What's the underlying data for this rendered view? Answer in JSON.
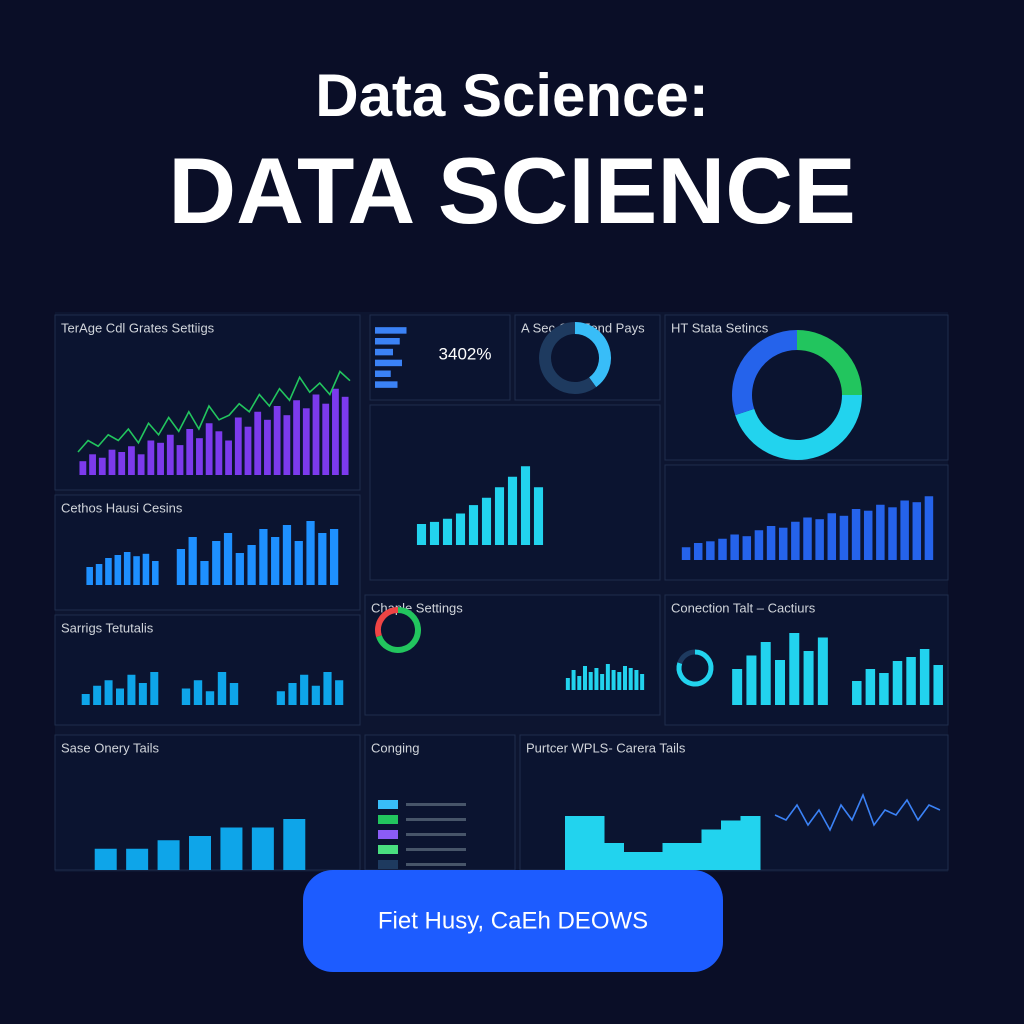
{
  "header": {
    "title": "Data Science:",
    "subtitle": "DATA SCIENCE"
  },
  "panels": [
    {
      "title": "TerAge Cdl Grates Settiigs",
      "charts": [
        {
          "type": "bar",
          "color": "#7c3aed",
          "ylim": [
            0,
            100
          ],
          "values": [
            12,
            18,
            15,
            22,
            20,
            25,
            18,
            30,
            28,
            35,
            26,
            40,
            32,
            45,
            38,
            30,
            50,
            42,
            55,
            48,
            60,
            52,
            65,
            58,
            70,
            62,
            75,
            68
          ]
        },
        {
          "type": "line",
          "color": "#22c55e",
          "ylim": [
            0,
            100
          ],
          "values": [
            20,
            30,
            25,
            35,
            30,
            40,
            28,
            45,
            35,
            50,
            38,
            55,
            40,
            60,
            48,
            52,
            62,
            55,
            70,
            60,
            75,
            65,
            85,
            72,
            80,
            70,
            90,
            82
          ]
        }
      ]
    },
    {
      "kpi": "3402%",
      "charts": [
        {
          "type": "hbar",
          "color": "#3b82f6",
          "ylim": [
            0,
            100
          ],
          "values": [
            70,
            55,
            40,
            60,
            35,
            50
          ]
        }
      ]
    },
    {
      "title": "A Sec CanFend Pays",
      "charts": [
        {
          "type": "donut",
          "colors": [
            "#38bdf8",
            "#1e3a5f"
          ],
          "values": [
            40,
            60
          ]
        }
      ]
    },
    {
      "title": "HT Stata Setincs",
      "charts": [
        {
          "type": "donut",
          "colors": [
            "#22c55e",
            "#22d3ee",
            "#2563eb"
          ],
          "values": [
            25,
            45,
            30
          ]
        }
      ]
    },
    {
      "charts": [
        {
          "type": "bar",
          "color": "#22d3ee",
          "ylim": [
            0,
            100
          ],
          "values": [
            20,
            22,
            25,
            30,
            38,
            45,
            55,
            65,
            75,
            55
          ]
        }
      ]
    },
    {
      "title": "Cethos Hausi Cesins",
      "charts": [
        {
          "type": "bar",
          "color": "#1e90ff",
          "ylim": [
            0,
            100
          ],
          "values": [
            30,
            35,
            45,
            50,
            55,
            48,
            52,
            40
          ]
        },
        {
          "type": "bar",
          "color": "#1e90ff",
          "ylim": [
            0,
            100
          ],
          "values": [
            45,
            60,
            30,
            55,
            65,
            40,
            50,
            70,
            60,
            75,
            55,
            80,
            65,
            70
          ]
        }
      ]
    },
    {
      "charts": [
        {
          "type": "bar",
          "color": "#2563eb",
          "ylim": [
            0,
            100
          ],
          "values": [
            15,
            20,
            22,
            25,
            30,
            28,
            35,
            40,
            38,
            45,
            50,
            48,
            55,
            52,
            60,
            58,
            65,
            62,
            70,
            68,
            75
          ]
        }
      ]
    },
    {
      "title": "Sarrigs Tetutalis",
      "charts": [
        {
          "type": "bar",
          "color": "#0ea5e9",
          "ylim": [
            0,
            100
          ],
          "values": [
            20,
            35,
            45,
            30,
            55,
            40,
            60
          ]
        },
        {
          "type": "bar",
          "color": "#0ea5e9",
          "ylim": [
            0,
            100
          ],
          "values": [
            30,
            45,
            25,
            60,
            40
          ]
        },
        {
          "type": "bar",
          "color": "#0ea5e9",
          "ylim": [
            0,
            100
          ],
          "values": [
            25,
            40,
            55,
            35,
            60,
            45
          ]
        }
      ]
    },
    {
      "title": "Chaple Settings",
      "charts": [
        {
          "type": "donut",
          "colors": [
            "#22c55e",
            "#ef4444"
          ],
          "values": [
            70,
            30
          ]
        },
        {
          "type": "bar",
          "color": "#22d3ee",
          "ylim": [
            0,
            100
          ],
          "values": [
            30,
            50,
            35,
            60,
            45,
            55,
            40,
            65,
            50,
            45,
            60,
            55,
            50,
            40
          ]
        }
      ]
    },
    {
      "title": "Conection Talt – Cactiurs",
      "charts": [
        {
          "type": "donut",
          "colors": [
            "#22d3ee",
            "#1e3a5f"
          ],
          "values": [
            80,
            20
          ]
        },
        {
          "type": "bar",
          "color": "#22d3ee",
          "ylim": [
            0,
            100
          ],
          "values": [
            40,
            55,
            70,
            50,
            80,
            60,
            75
          ]
        },
        {
          "type": "bar",
          "color": "#22d3ee",
          "ylim": [
            0,
            100
          ],
          "values": [
            30,
            45,
            40,
            55,
            60,
            70,
            50
          ]
        }
      ]
    },
    {
      "title": "Sase Onery Tails",
      "charts": [
        {
          "type": "bar",
          "color": "#0ea5e9",
          "ylim": [
            0,
            100
          ],
          "values": [
            25,
            25,
            35,
            40,
            50,
            50,
            60
          ]
        }
      ]
    },
    {
      "title": "Conging",
      "charts": [
        {
          "type": "chips",
          "colors": [
            "#38bdf8",
            "#22c55e",
            "#8b5cf6",
            "#4ade80",
            "#1e3a5f"
          ]
        }
      ]
    },
    {
      "title": "Purtcer WPLS- Carera Tails",
      "charts": [
        {
          "type": "step",
          "color": "#22d3ee",
          "ylim": [
            0,
            100
          ],
          "values": [
            60,
            60,
            30,
            20,
            20,
            30,
            30,
            45,
            55,
            60
          ]
        },
        {
          "type": "line",
          "color": "#3b82f6",
          "ylim": [
            0,
            100
          ],
          "values": [
            50,
            45,
            60,
            40,
            55,
            35,
            60,
            45,
            70,
            40,
            55,
            50,
            65,
            45,
            60,
            55
          ]
        }
      ]
    }
  ],
  "button": {
    "label": "Fiet Husy, CaEh DEOWS"
  }
}
